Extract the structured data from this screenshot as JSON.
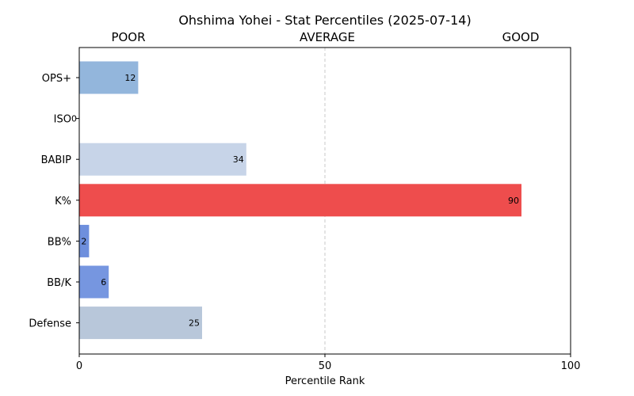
{
  "chart_data": {
    "type": "bar",
    "orientation": "horizontal",
    "title": "Ohshima Yohei - Stat Percentiles (2025-07-14)",
    "xlabel": "Percentile Rank",
    "ylabel": "",
    "xlim": [
      0,
      100
    ],
    "x_ticks": [
      "0",
      "50",
      "100"
    ],
    "x_tick_values": [
      0,
      50,
      100
    ],
    "zone_labels": [
      "POOR",
      "AVERAGE",
      "GOOD"
    ],
    "reference_line": 50,
    "grid": false,
    "categories": [
      "OPS+",
      "ISO",
      "BABIP",
      "K%",
      "BB%",
      "BB/K",
      "Defense"
    ],
    "values": [
      12,
      0,
      34,
      90,
      2,
      6,
      25
    ],
    "value_labels": [
      "12",
      "0",
      "34",
      "90",
      "2",
      "6",
      "25"
    ],
    "colors": [
      "#93b6dc",
      "#3b5ccc",
      "#c7d4e8",
      "#ee4d4d",
      "#6e8fdd",
      "#7696e0",
      "#b8c7da"
    ]
  }
}
